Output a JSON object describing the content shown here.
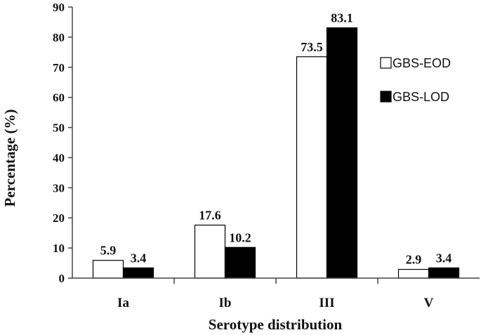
{
  "chart_data": {
    "type": "bar",
    "categories": [
      "Ia",
      "Ib",
      "III",
      "V"
    ],
    "series": [
      {
        "name": "GBS-EOD",
        "values": [
          5.9,
          17.6,
          73.5,
          2.9
        ],
        "color": "#ffffff"
      },
      {
        "name": "GBS-LOD",
        "values": [
          3.4,
          10.2,
          83.1,
          3.4
        ],
        "color": "#000000"
      }
    ],
    "data_labels": [
      [
        "5.9",
        "17.6",
        "73.5",
        "2.9"
      ],
      [
        "3.4",
        "10.2",
        "83.1",
        "3.4"
      ]
    ],
    "yticks": [
      0,
      10,
      20,
      30,
      40,
      50,
      60,
      70,
      80,
      90
    ],
    "ylim": [
      0,
      90
    ],
    "xlabel": "Serotype distribution",
    "ylabel": "Percentage (%)",
    "grid": false,
    "legend_position": "right"
  }
}
